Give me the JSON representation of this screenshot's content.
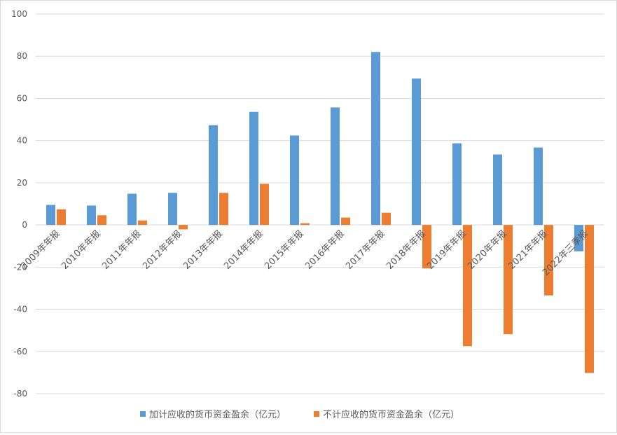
{
  "chart_data": {
    "type": "bar",
    "title": "",
    "xlabel": "",
    "ylabel": "",
    "ylim": [
      -80,
      100
    ],
    "yticks": [
      100,
      80,
      60,
      40,
      20,
      0,
      -20,
      -40,
      -60,
      -80
    ],
    "grid": true,
    "legend_position": "bottom",
    "categories": [
      "2009年年报",
      "2010年年报",
      "2011年年报",
      "2012年年报",
      "2013年年报",
      "2014年年报",
      "2015年年报",
      "2016年年报",
      "2017年年报",
      "2018年年报",
      "2019年年报",
      "2020年年报",
      "2021年年报",
      "2022年三季报"
    ],
    "series": [
      {
        "name": "加计应收的货币资金盈余（亿元）",
        "color": "#5b9bd5",
        "values": [
          9.5,
          9.2,
          14.8,
          15.2,
          47.3,
          53.6,
          42.4,
          55.7,
          82.0,
          69.4,
          38.7,
          33.4,
          36.7,
          -12.5
        ]
      },
      {
        "name": "不计应收的货币资金盈余（亿元）",
        "color": "#ed7d31",
        "values": [
          7.4,
          4.6,
          2.1,
          -2.1,
          15.2,
          19.5,
          0.8,
          3.5,
          5.8,
          -20.6,
          -57.5,
          -51.8,
          -33.4,
          -70.2
        ]
      }
    ]
  }
}
